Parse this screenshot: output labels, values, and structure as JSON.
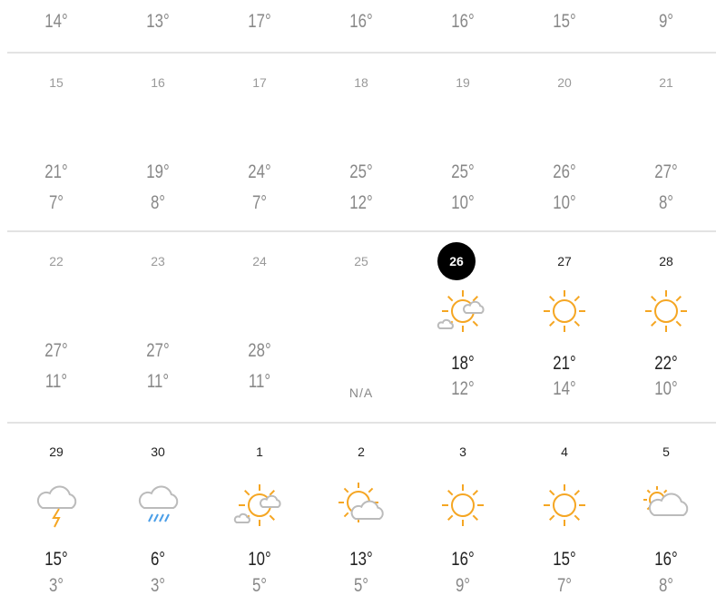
{
  "colors": {
    "sun": "#f5a623",
    "cloud": "#bbbbbb",
    "rain": "#4a9ee8",
    "today_bg": "#000000"
  },
  "weeks": [
    {
      "days": [
        {
          "high": "14°"
        },
        {
          "high": "13°"
        },
        {
          "high": "17°"
        },
        {
          "high": "16°"
        },
        {
          "high": "16°"
        },
        {
          "high": "15°"
        },
        {
          "high": "9°"
        }
      ]
    },
    {
      "days": [
        {
          "date": "15",
          "high": "21°",
          "low": "7°"
        },
        {
          "date": "16",
          "high": "19°",
          "low": "8°"
        },
        {
          "date": "17",
          "high": "24°",
          "low": "7°"
        },
        {
          "date": "18",
          "high": "25°",
          "low": "12°"
        },
        {
          "date": "19",
          "high": "25°",
          "low": "10°"
        },
        {
          "date": "20",
          "high": "26°",
          "low": "10°"
        },
        {
          "date": "21",
          "high": "27°",
          "low": "8°"
        }
      ]
    },
    {
      "days": [
        {
          "date": "22",
          "high": "27°",
          "low": "11°"
        },
        {
          "date": "23",
          "high": "27°",
          "low": "11°"
        },
        {
          "date": "24",
          "high": "28°",
          "low": "11°"
        },
        {
          "date": "25",
          "na": "N/A"
        },
        {
          "date": "26",
          "today": true,
          "icon": "partly-cloudy-icon",
          "high": "18°",
          "low": "12°"
        },
        {
          "date": "27",
          "icon": "sun-icon",
          "high": "21°",
          "low": "14°"
        },
        {
          "date": "28",
          "icon": "sun-icon",
          "high": "22°",
          "low": "10°"
        }
      ]
    },
    {
      "days": [
        {
          "date": "29",
          "icon": "thunderstorm-icon",
          "high": "15°",
          "low": "3°"
        },
        {
          "date": "30",
          "icon": "rain-icon",
          "high": "6°",
          "low": "3°"
        },
        {
          "date": "1",
          "icon": "partly-cloudy-icon",
          "high": "10°",
          "low": "5°"
        },
        {
          "date": "2",
          "icon": "sun-behind-cloud-icon",
          "high": "13°",
          "low": "5°"
        },
        {
          "date": "3",
          "icon": "sun-icon",
          "high": "16°",
          "low": "9°"
        },
        {
          "date": "4",
          "icon": "sun-icon",
          "high": "15°",
          "low": "7°"
        },
        {
          "date": "5",
          "icon": "cloud-with-sun-icon",
          "high": "16°",
          "low": "8°"
        }
      ]
    }
  ]
}
